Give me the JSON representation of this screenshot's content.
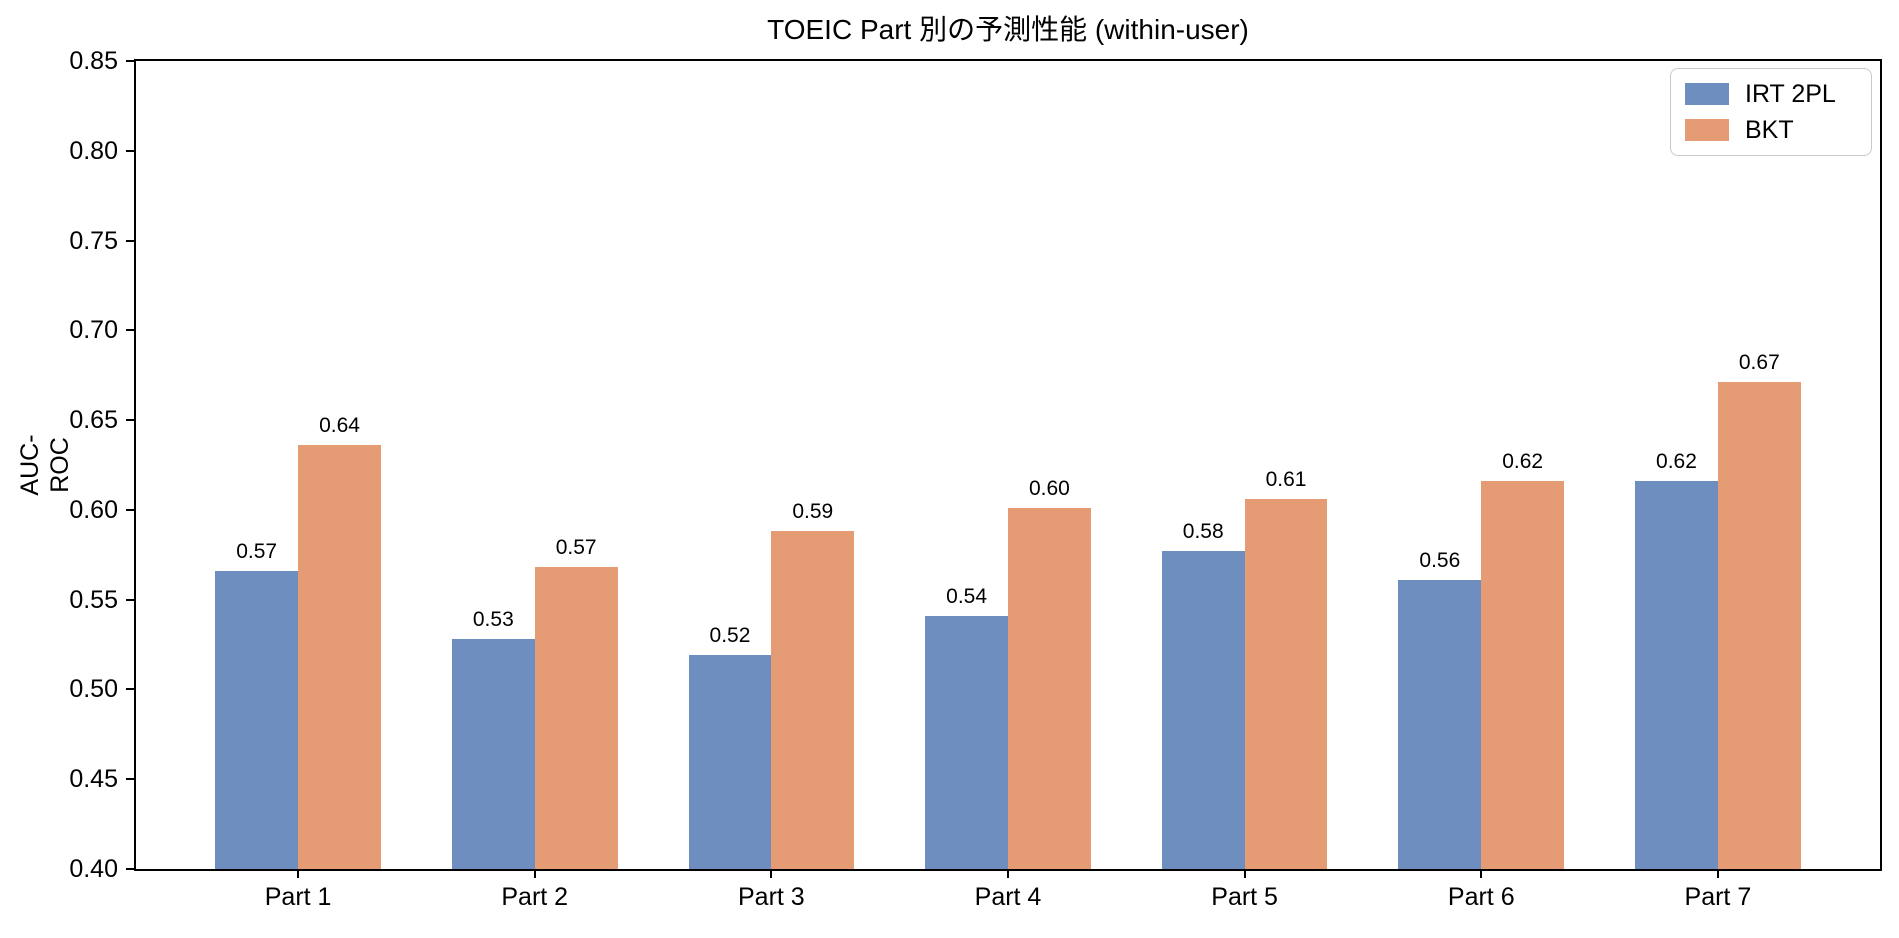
{
  "chart_data": {
    "type": "bar",
    "title": "TOEIC Part 別の予測性能 (within-user)",
    "xlabel": "",
    "ylabel": "AUC-ROC",
    "categories": [
      "Part 1",
      "Part 2",
      "Part 3",
      "Part 4",
      "Part 5",
      "Part 6",
      "Part 7"
    ],
    "series": [
      {
        "name": "IRT 2PL",
        "color": "#6d8ebf",
        "values": [
          0.566,
          0.528,
          0.519,
          0.541,
          0.577,
          0.561,
          0.616
        ],
        "labels": [
          "0.57",
          "0.53",
          "0.52",
          "0.54",
          "0.58",
          "0.56",
          "0.62"
        ]
      },
      {
        "name": "BKT",
        "color": "#e59c74",
        "values": [
          0.636,
          0.568,
          0.588,
          0.601,
          0.606,
          0.616,
          0.671
        ],
        "labels": [
          "0.64",
          "0.57",
          "0.59",
          "0.60",
          "0.61",
          "0.62",
          "0.67"
        ]
      }
    ],
    "ylim": [
      0.4,
      0.85
    ],
    "yticks": [
      "0.40",
      "0.45",
      "0.50",
      "0.55",
      "0.60",
      "0.65",
      "0.70",
      "0.75",
      "0.80",
      "0.85"
    ],
    "bar_width": 0.35,
    "legend_position": "upper right",
    "grid": false,
    "colors": {
      "axis": "#000000",
      "text": "#000000",
      "legend_border": "#c9c9c9",
      "background": "#ffffff"
    }
  }
}
